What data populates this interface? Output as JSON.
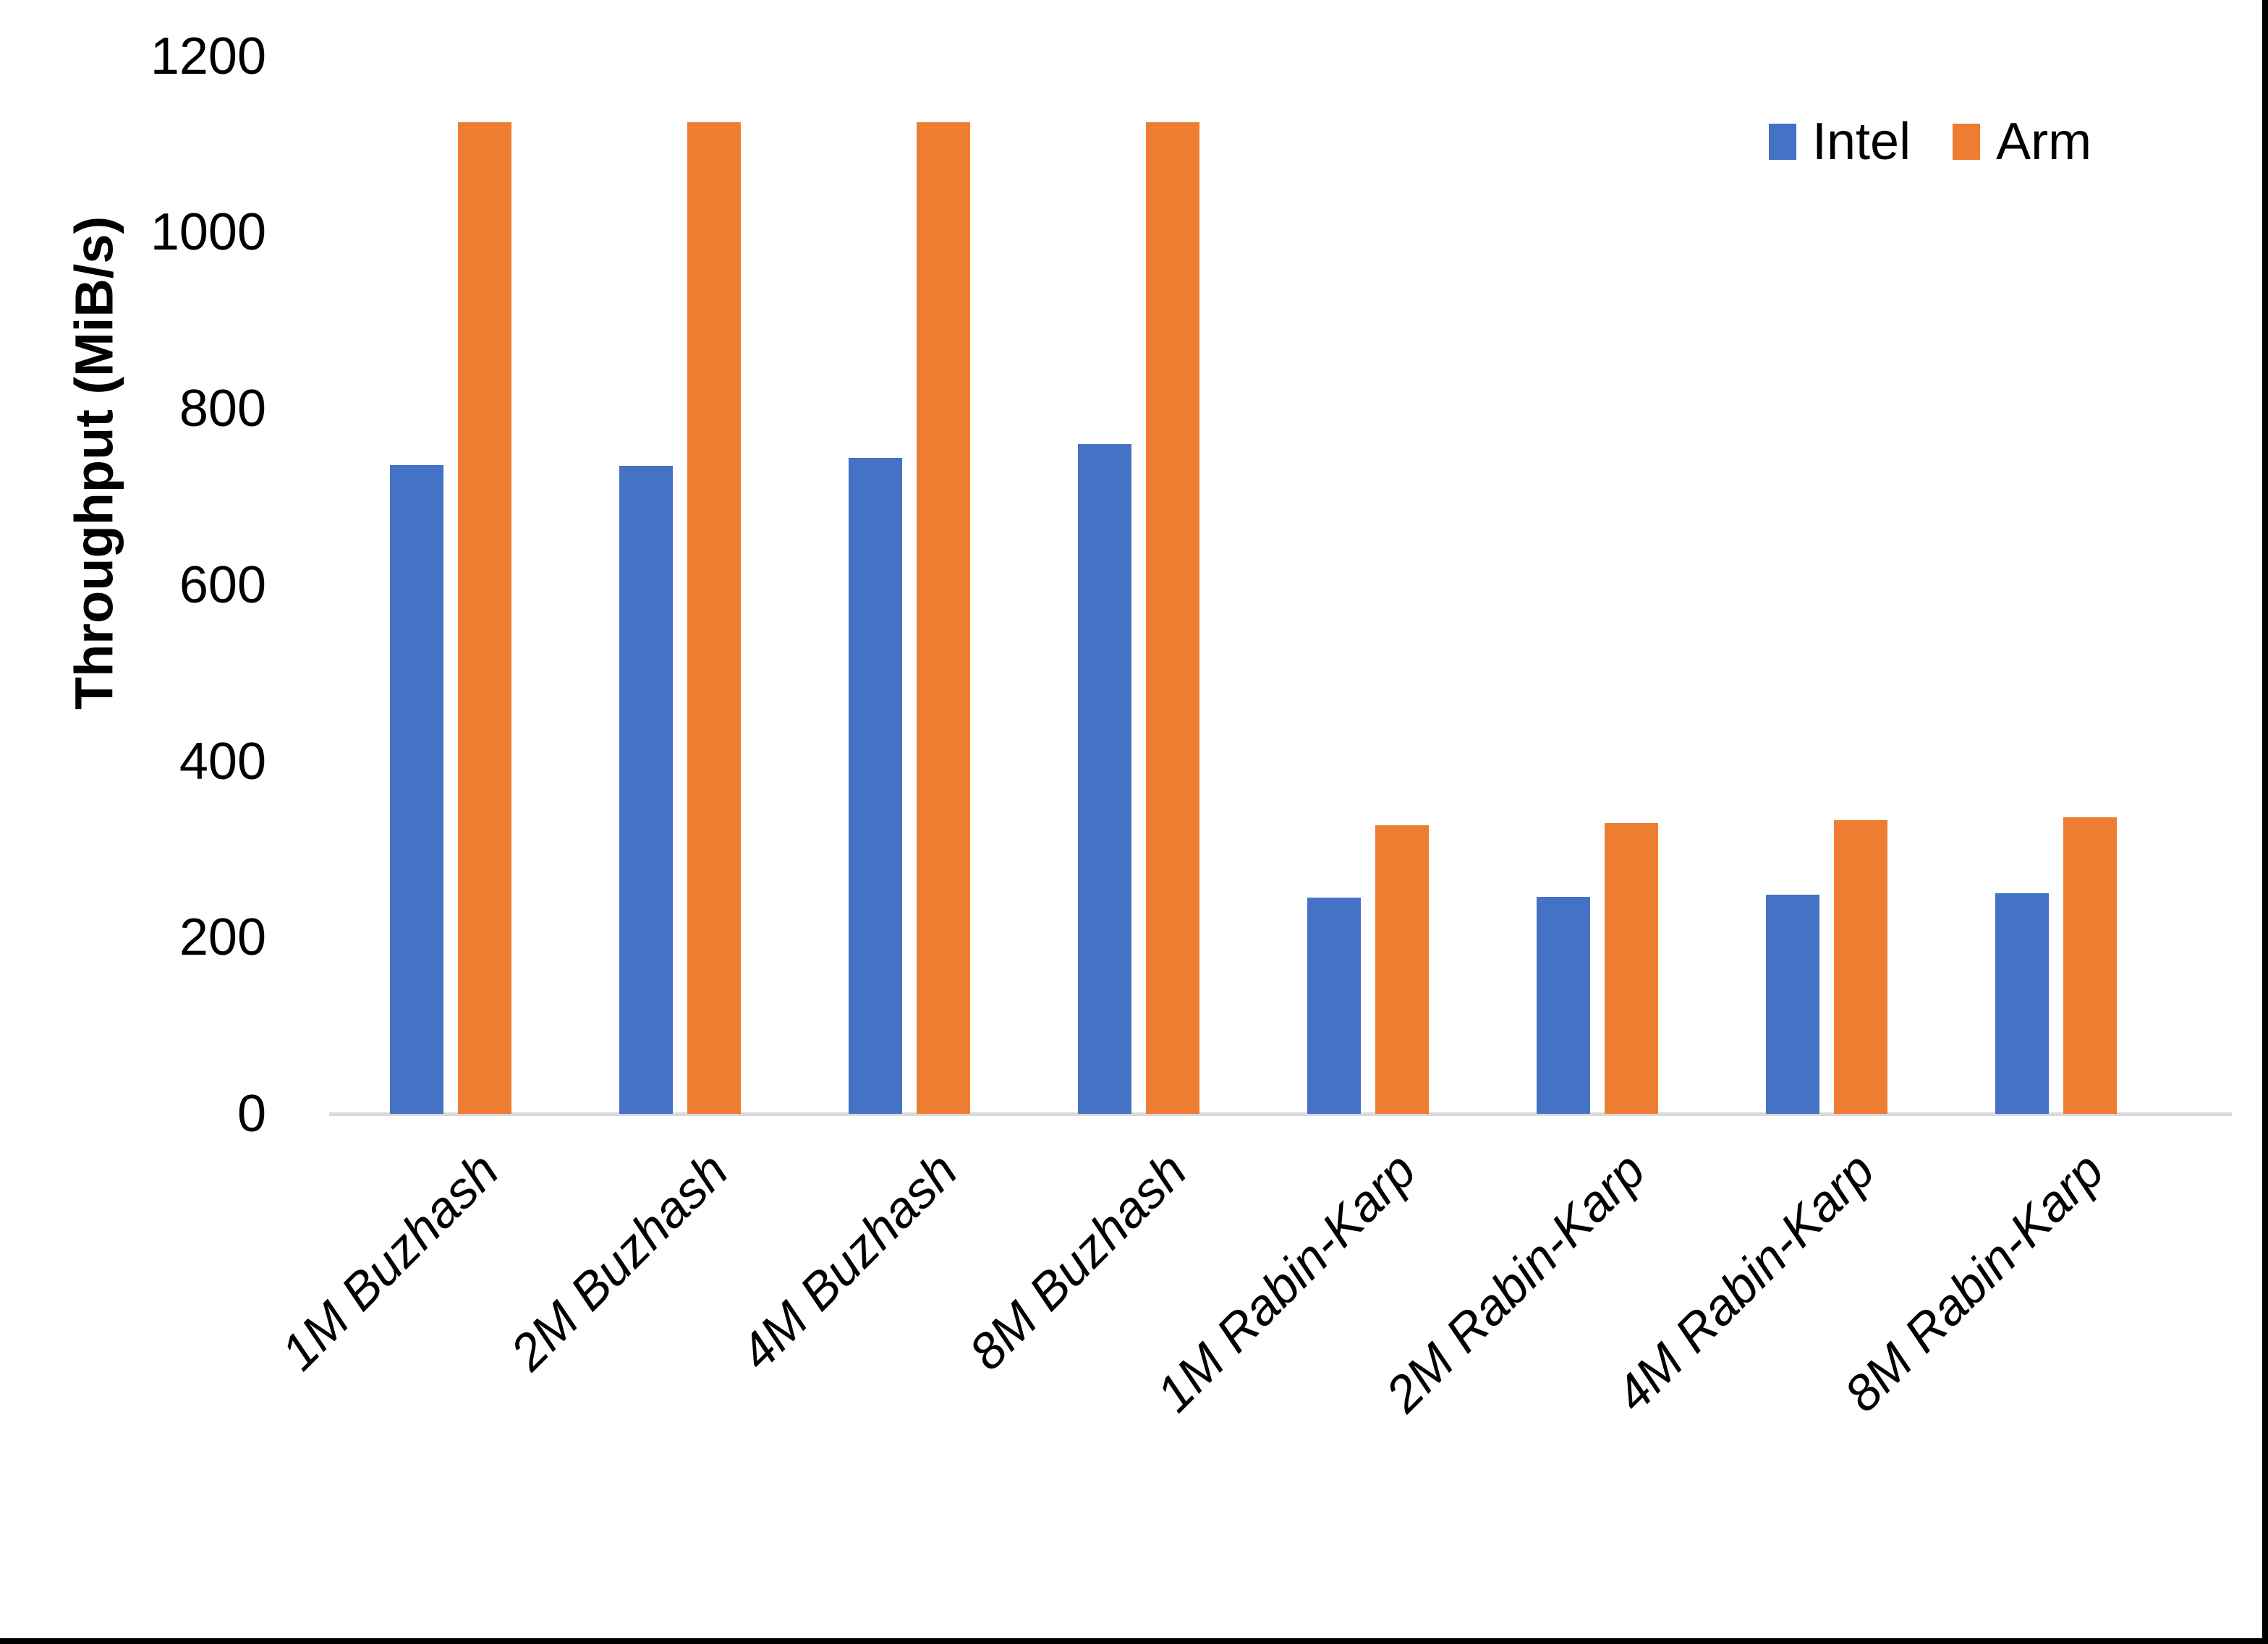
{
  "chart_data": {
    "type": "bar",
    "title": "",
    "categories": [
      "1M Buzhash",
      "2M Buzhash",
      "4M Buzhash",
      "8M Buzhash",
      "1M Rabin-Karp",
      "2M Rabin-Karp",
      "4M Rabin-Karp",
      "8M Rabin-Karp"
    ],
    "series": [
      {
        "name": "Intel",
        "color": "#4472C4",
        "values": [
          736,
          735,
          744,
          760,
          245,
          246,
          249,
          250
        ]
      },
      {
        "name": "Arm",
        "color": "#ED7D31",
        "values": [
          1125,
          1125,
          1125,
          1125,
          327,
          330,
          333,
          336
        ]
      }
    ],
    "xlabel": "",
    "ylabel": "Throughput (MiB/s)",
    "ylim": [
      0,
      1200
    ],
    "yticks": [
      0,
      200,
      400,
      600,
      800,
      1000,
      1200
    ],
    "grid": "off",
    "legend_position": "top-right"
  },
  "legend": {
    "items": [
      {
        "label": "Intel",
        "color": "#4472C4"
      },
      {
        "label": "Arm",
        "color": "#ED7D31"
      }
    ]
  },
  "axis": {
    "baseline_color": "#D9D9D9",
    "text_color": "#000000"
  }
}
